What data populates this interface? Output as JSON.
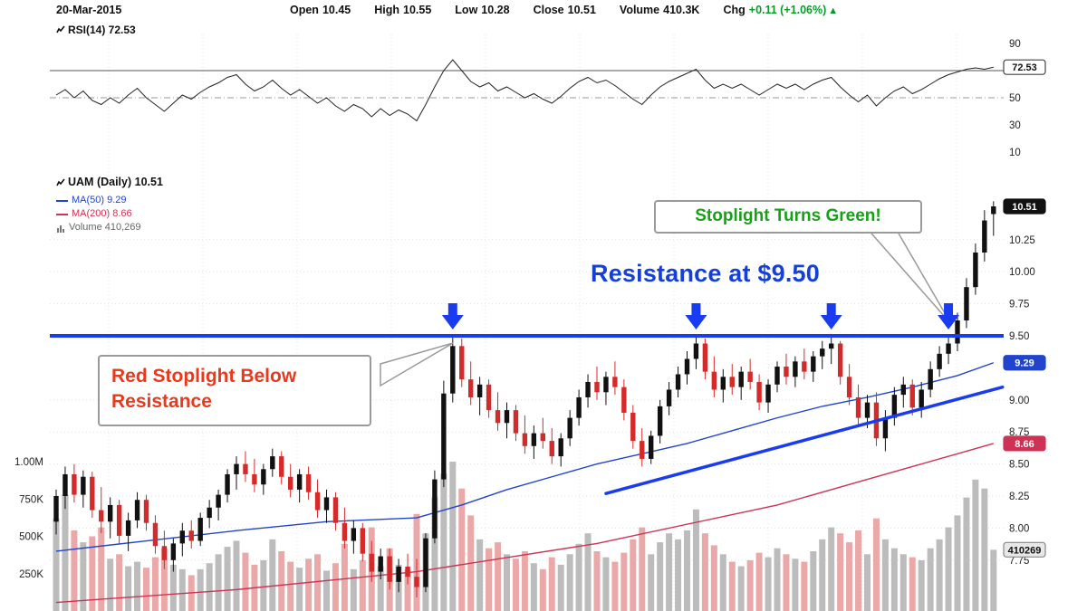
{
  "header": {
    "date": "20-Mar-2015",
    "open_label": "Open",
    "open": "10.45",
    "high_label": "High",
    "high": "10.55",
    "low_label": "Low",
    "low": "10.28",
    "close_label": "Close",
    "close": "10.51",
    "volume_label": "Volume",
    "volume": "410.3K",
    "chg_label": "Chg",
    "chg": "+0.11 (+1.06%)"
  },
  "icons": {
    "up_triangle": "▲"
  },
  "rsi_label": "RSI(14) 72.53",
  "legend": {
    "symbol": "UAM (Daily) 10.51",
    "ma50": "MA(50) 9.29",
    "ma200": "MA(200) 8.66",
    "volume": "Volume 410,269"
  },
  "annotations": {
    "resistance": "Resistance at $9.50",
    "red_callout": "Red Stoplight Below Resistance",
    "green_callout": "Stoplight Turns Green!"
  },
  "axis": {
    "right_price_ticks": [
      "10.25",
      "10.00",
      "9.75",
      "9.50",
      "9.00",
      "8.75",
      "8.50",
      "8.25",
      "8.00",
      "7.75"
    ],
    "rsi_ticks": [
      "90",
      "50",
      "30",
      "10"
    ],
    "left_volume_ticks": [
      {
        "label": "1.00M",
        "k": 1000
      },
      {
        "label": "750K",
        "k": 750
      },
      {
        "label": "500K",
        "k": 500
      },
      {
        "label": "250K",
        "k": 250
      }
    ],
    "boxes": {
      "rsi": "72.53",
      "last": "10.51",
      "ma50": "9.29",
      "ma200": "8.66",
      "volume": "410269"
    }
  },
  "colors": {
    "up": "#111111",
    "down": "#d42a2a",
    "ma50": "#2244cc",
    "ma200": "#cc3355",
    "resistance": "#1a3cf0",
    "arrow": "#1a3cf0",
    "vol_up": "#bcbcbc",
    "vol_down": "#eaa8a8",
    "rsi_line": "#222222",
    "green_text": "#18a018",
    "red_text": "#e8391d",
    "blue_text": "#1540d8",
    "chg_green": "#0a9a28"
  },
  "chart_data": [
    {
      "type": "line",
      "name": "RSI(14)",
      "current": 72.53,
      "ylim": [
        0,
        100
      ],
      "overbought": 70,
      "midline": 50,
      "values": [
        52,
        56,
        50,
        55,
        48,
        45,
        50,
        46,
        52,
        57,
        50,
        45,
        40,
        46,
        52,
        49,
        54,
        58,
        61,
        65,
        67,
        60,
        55,
        58,
        63,
        57,
        52,
        56,
        51,
        46,
        50,
        44,
        40,
        45,
        42,
        36,
        42,
        37,
        41,
        38,
        33,
        45,
        58,
        70,
        78,
        70,
        62,
        58,
        61,
        55,
        58,
        54,
        50,
        53,
        49,
        46,
        51,
        57,
        62,
        65,
        61,
        63,
        59,
        54,
        49,
        45,
        52,
        58,
        62,
        65,
        68,
        71,
        63,
        57,
        60,
        57,
        60,
        56,
        52,
        56,
        60,
        57,
        60,
        56,
        60,
        63,
        65,
        58,
        52,
        47,
        52,
        44,
        50,
        55,
        58,
        53,
        56,
        60,
        64,
        67,
        69,
        71,
        72,
        71,
        72.53
      ]
    },
    {
      "type": "candlestick",
      "name": "UAM (Daily)",
      "last_close": 10.51,
      "resistance": 9.5,
      "signal_arrow_indices": [
        44,
        71,
        86,
        99
      ],
      "price_ticks": [
        10.25,
        10.0,
        9.75,
        9.5,
        9.0,
        8.75,
        8.5,
        8.25,
        8.0,
        7.75
      ],
      "ylim": [
        7.35,
        10.65
      ],
      "ma50": {
        "period": 50,
        "current": 9.29,
        "points": [
          [
            0,
            7.82
          ],
          [
            10,
            7.9
          ],
          [
            20,
            7.98
          ],
          [
            30,
            8.05
          ],
          [
            40,
            8.08
          ],
          [
            45,
            8.18
          ],
          [
            50,
            8.3
          ],
          [
            55,
            8.4
          ],
          [
            60,
            8.5
          ],
          [
            65,
            8.58
          ],
          [
            70,
            8.66
          ],
          [
            75,
            8.76
          ],
          [
            80,
            8.86
          ],
          [
            85,
            8.95
          ],
          [
            90,
            9.02
          ],
          [
            95,
            9.1
          ],
          [
            100,
            9.19
          ],
          [
            104,
            9.29
          ]
        ]
      },
      "ma200": {
        "period": 200,
        "current": 8.66,
        "points": [
          [
            0,
            7.42
          ],
          [
            20,
            7.52
          ],
          [
            40,
            7.66
          ],
          [
            60,
            7.88
          ],
          [
            80,
            8.18
          ],
          [
            90,
            8.38
          ],
          [
            95,
            8.48
          ],
          [
            100,
            8.58
          ],
          [
            104,
            8.66
          ]
        ]
      },
      "trendline": {
        "from": [
          61,
          8.27
        ],
        "to": [
          105,
          9.1
        ]
      },
      "ohlc": [
        [
          8.05,
          8.3,
          7.95,
          8.25
        ],
        [
          8.25,
          8.48,
          8.15,
          8.42
        ],
        [
          8.42,
          8.5,
          8.2,
          8.26
        ],
        [
          8.26,
          8.45,
          8.16,
          8.4
        ],
        [
          8.4,
          8.44,
          8.08,
          8.14
        ],
        [
          8.14,
          8.32,
          7.96,
          8.05
        ],
        [
          8.05,
          8.24,
          7.92,
          8.18
        ],
        [
          8.18,
          8.22,
          7.88,
          7.94
        ],
        [
          7.94,
          8.12,
          7.82,
          8.06
        ],
        [
          8.06,
          8.28,
          8.0,
          8.22
        ],
        [
          8.22,
          8.26,
          7.98,
          8.04
        ],
        [
          8.04,
          8.1,
          7.8,
          7.86
        ],
        [
          7.86,
          7.98,
          7.68,
          7.75
        ],
        [
          7.75,
          7.92,
          7.66,
          7.88
        ],
        [
          7.88,
          8.04,
          7.78,
          7.98
        ],
        [
          7.98,
          8.06,
          7.84,
          7.9
        ],
        [
          7.9,
          8.12,
          7.86,
          8.08
        ],
        [
          8.08,
          8.22,
          8.0,
          8.16
        ],
        [
          8.16,
          8.3,
          8.06,
          8.26
        ],
        [
          8.26,
          8.46,
          8.2,
          8.42
        ],
        [
          8.42,
          8.56,
          8.3,
          8.5
        ],
        [
          8.5,
          8.6,
          8.36,
          8.42
        ],
        [
          8.42,
          8.54,
          8.28,
          8.34
        ],
        [
          8.34,
          8.5,
          8.26,
          8.46
        ],
        [
          8.46,
          8.62,
          8.4,
          8.56
        ],
        [
          8.56,
          8.6,
          8.34,
          8.4
        ],
        [
          8.4,
          8.5,
          8.24,
          8.3
        ],
        [
          8.3,
          8.46,
          8.2,
          8.42
        ],
        [
          8.42,
          8.48,
          8.22,
          8.28
        ],
        [
          8.28,
          8.38,
          8.08,
          8.14
        ],
        [
          8.14,
          8.3,
          8.04,
          8.24
        ],
        [
          8.24,
          8.28,
          7.98,
          8.04
        ],
        [
          8.04,
          8.16,
          7.84,
          7.9
        ],
        [
          7.9,
          8.06,
          7.8,
          8.0
        ],
        [
          8.0,
          8.04,
          7.74,
          7.8
        ],
        [
          7.8,
          7.9,
          7.58,
          7.66
        ],
        [
          7.66,
          7.84,
          7.6,
          7.78
        ],
        [
          7.78,
          7.84,
          7.52,
          7.58
        ],
        [
          7.58,
          7.76,
          7.5,
          7.7
        ],
        [
          7.7,
          7.8,
          7.56,
          7.62
        ],
        [
          7.62,
          7.76,
          7.46,
          7.54
        ],
        [
          7.54,
          7.96,
          7.5,
          7.92
        ],
        [
          7.92,
          8.45,
          7.88,
          8.38
        ],
        [
          8.38,
          9.15,
          8.32,
          9.05
        ],
        [
          9.05,
          9.5,
          8.98,
          9.42
        ],
        [
          9.42,
          9.48,
          9.1,
          9.16
        ],
        [
          9.16,
          9.3,
          8.96,
          9.02
        ],
        [
          9.02,
          9.18,
          8.88,
          9.12
        ],
        [
          9.12,
          9.16,
          8.86,
          8.92
        ],
        [
          8.92,
          9.06,
          8.76,
          8.82
        ],
        [
          8.82,
          8.98,
          8.7,
          8.92
        ],
        [
          8.92,
          8.96,
          8.68,
          8.74
        ],
        [
          8.74,
          8.88,
          8.58,
          8.64
        ],
        [
          8.64,
          8.8,
          8.54,
          8.74
        ],
        [
          8.74,
          8.86,
          8.62,
          8.68
        ],
        [
          8.68,
          8.78,
          8.5,
          8.56
        ],
        [
          8.56,
          8.74,
          8.48,
          8.7
        ],
        [
          8.7,
          8.92,
          8.64,
          8.86
        ],
        [
          8.86,
          9.08,
          8.8,
          9.02
        ],
        [
          9.02,
          9.2,
          8.94,
          9.14
        ],
        [
          9.14,
          9.26,
          9.0,
          9.06
        ],
        [
          9.06,
          9.22,
          8.96,
          9.18
        ],
        [
          9.18,
          9.3,
          9.04,
          9.1
        ],
        [
          9.1,
          9.16,
          8.84,
          8.9
        ],
        [
          8.9,
          8.96,
          8.62,
          8.68
        ],
        [
          8.68,
          8.78,
          8.48,
          8.54
        ],
        [
          8.54,
          8.76,
          8.5,
          8.72
        ],
        [
          8.72,
          9.0,
          8.66,
          8.95
        ],
        [
          8.95,
          9.14,
          8.88,
          9.08
        ],
        [
          9.08,
          9.26,
          9.02,
          9.2
        ],
        [
          9.2,
          9.38,
          9.12,
          9.32
        ],
        [
          9.32,
          9.5,
          9.24,
          9.44
        ],
        [
          9.44,
          9.48,
          9.16,
          9.22
        ],
        [
          9.22,
          9.34,
          9.02,
          9.08
        ],
        [
          9.08,
          9.24,
          8.98,
          9.18
        ],
        [
          9.18,
          9.28,
          9.04,
          9.1
        ],
        [
          9.1,
          9.26,
          9.0,
          9.22
        ],
        [
          9.22,
          9.32,
          9.08,
          9.14
        ],
        [
          9.14,
          9.2,
          8.92,
          8.98
        ],
        [
          8.98,
          9.16,
          8.9,
          9.12
        ],
        [
          9.12,
          9.3,
          9.06,
          9.26
        ],
        [
          9.26,
          9.36,
          9.12,
          9.18
        ],
        [
          9.18,
          9.34,
          9.1,
          9.3
        ],
        [
          9.3,
          9.4,
          9.16,
          9.22
        ],
        [
          9.22,
          9.38,
          9.14,
          9.34
        ],
        [
          9.34,
          9.46,
          9.24,
          9.4
        ],
        [
          9.4,
          9.5,
          9.28,
          9.44
        ],
        [
          9.44,
          9.46,
          9.12,
          9.18
        ],
        [
          9.18,
          9.28,
          8.96,
          9.02
        ],
        [
          9.02,
          9.12,
          8.8,
          8.86
        ],
        [
          8.86,
          9.04,
          8.78,
          8.98
        ],
        [
          8.98,
          9.06,
          8.64,
          8.7
        ],
        [
          8.7,
          8.92,
          8.6,
          8.86
        ],
        [
          8.86,
          9.1,
          8.8,
          9.04
        ],
        [
          9.04,
          9.18,
          8.94,
          9.12
        ],
        [
          9.12,
          9.16,
          8.88,
          8.94
        ],
        [
          8.94,
          9.14,
          8.86,
          9.08
        ],
        [
          9.08,
          9.3,
          9.02,
          9.24
        ],
        [
          9.24,
          9.42,
          9.18,
          9.36
        ],
        [
          9.36,
          9.5,
          9.28,
          9.44
        ],
        [
          9.44,
          9.68,
          9.38,
          9.62
        ],
        [
          9.62,
          9.95,
          9.56,
          9.88
        ],
        [
          9.88,
          10.22,
          9.82,
          10.15
        ],
        [
          10.15,
          10.48,
          10.08,
          10.4
        ],
        [
          10.45,
          10.55,
          10.28,
          10.51
        ]
      ]
    },
    {
      "type": "bar",
      "name": "Volume",
      "current": 410269,
      "unit": "thousands",
      "values_k": [
        620,
        780,
        540,
        460,
        500,
        560,
        350,
        380,
        300,
        330,
        290,
        360,
        420,
        310,
        280,
        240,
        280,
        320,
        380,
        430,
        470,
        390,
        310,
        340,
        480,
        400,
        330,
        290,
        350,
        380,
        270,
        320,
        450,
        280,
        340,
        560,
        300,
        420,
        310,
        280,
        650,
        520,
        760,
        920,
        1000,
        820,
        640,
        480,
        420,
        460,
        380,
        350,
        400,
        320,
        280,
        360,
        310,
        380,
        450,
        520,
        400,
        360,
        330,
        390,
        480,
        560,
        380,
        460,
        520,
        480,
        540,
        680,
        520,
        440,
        380,
        330,
        300,
        340,
        390,
        360,
        420,
        380,
        350,
        330,
        400,
        480,
        560,
        520,
        460,
        540,
        380,
        620,
        480,
        420,
        380,
        360,
        340,
        420,
        480,
        560,
        640,
        760,
        880,
        820,
        410
      ]
    }
  ]
}
